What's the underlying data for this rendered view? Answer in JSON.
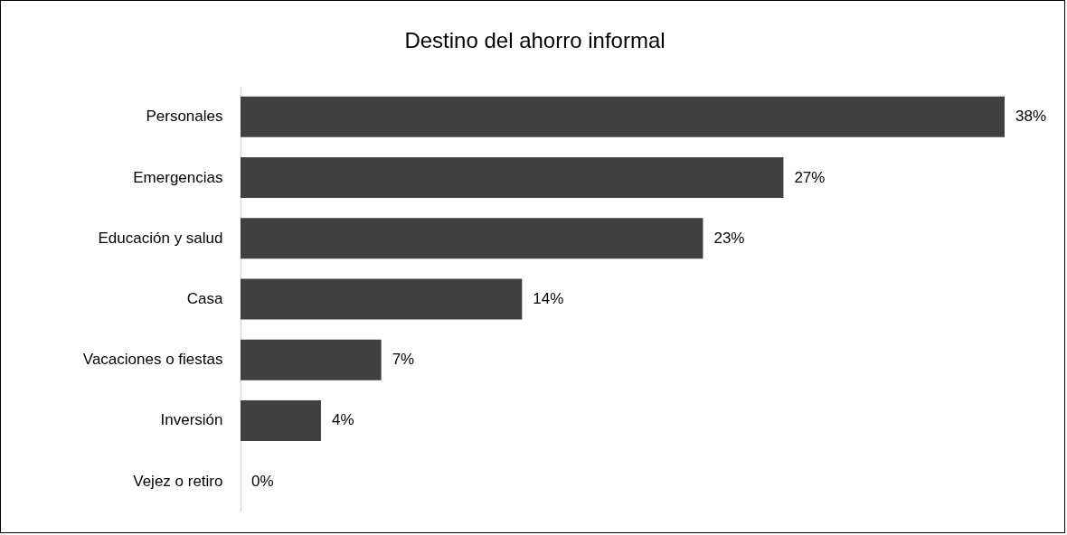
{
  "chart_data": {
    "type": "bar",
    "title": "Destino del ahorro informal",
    "orientation": "horizontal",
    "categories": [
      "Personales",
      "Emergencias",
      "Educación y salud",
      "Casa",
      "Vacaciones o fiestas",
      "Inversión",
      "Vejez o retiro"
    ],
    "values": [
      38,
      27,
      23,
      14,
      7,
      4,
      0
    ],
    "value_labels": [
      "38%",
      "27%",
      "23%",
      "14%",
      "7%",
      "4%",
      "0%"
    ],
    "color": "#404040"
  }
}
